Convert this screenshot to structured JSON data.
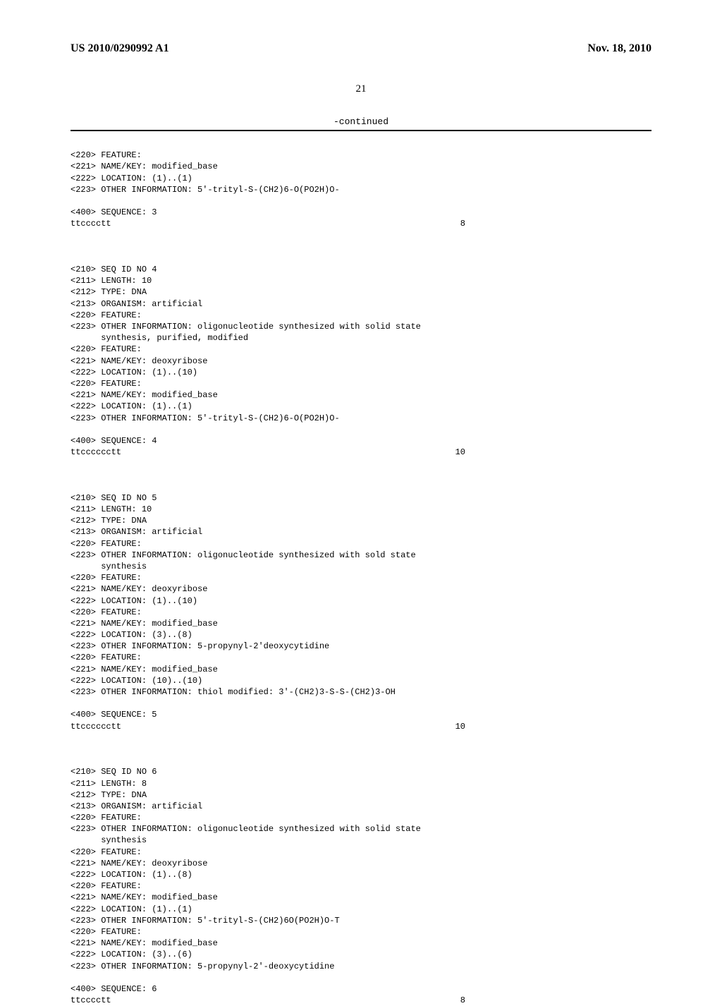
{
  "header": {
    "pub_number": "US 2010/0290992 A1",
    "pub_date": "Nov. 18, 2010"
  },
  "page_number": "21",
  "continued_label": "-continued",
  "blocks": {
    "b0": {
      "l1": "<220> FEATURE:",
      "l2": "<221> NAME/KEY: modified_base",
      "l3": "<222> LOCATION: (1)..(1)",
      "l4": "<223> OTHER INFORMATION: 5'-trityl-S-(CH2)6-O(PO2H)O-",
      "l5": "<400> SEQUENCE: 3",
      "seq": "ttcccctt",
      "seqnum": "8"
    },
    "b1": {
      "l1": "<210> SEQ ID NO 4",
      "l2": "<211> LENGTH: 10",
      "l3": "<212> TYPE: DNA",
      "l4": "<213> ORGANISM: artificial",
      "l5": "<220> FEATURE:",
      "l6": "<223> OTHER INFORMATION: oligonucleotide synthesized with solid state",
      "l7": "      synthesis, purified, modified",
      "l8": "<220> FEATURE:",
      "l9": "<221> NAME/KEY: deoxyribose",
      "l10": "<222> LOCATION: (1)..(10)",
      "l11": "<220> FEATURE:",
      "l12": "<221> NAME/KEY: modified_base",
      "l13": "<222> LOCATION: (1)..(1)",
      "l14": "<223> OTHER INFORMATION: 5'-trityl-S-(CH2)6-O(PO2H)O-",
      "l15": "<400> SEQUENCE: 4",
      "seq": "ttcccccctt",
      "seqnum": "10"
    },
    "b2": {
      "l1": "<210> SEQ ID NO 5",
      "l2": "<211> LENGTH: 10",
      "l3": "<212> TYPE: DNA",
      "l4": "<213> ORGANISM: artificial",
      "l5": "<220> FEATURE:",
      "l6": "<223> OTHER INFORMATION: oligonucleotide synthesized with sold state",
      "l7": "      synthesis",
      "l8": "<220> FEATURE:",
      "l9": "<221> NAME/KEY: deoxyribose",
      "l10": "<222> LOCATION: (1)..(10)",
      "l11": "<220> FEATURE:",
      "l12": "<221> NAME/KEY: modified_base",
      "l13": "<222> LOCATION: (3)..(8)",
      "l14": "<223> OTHER INFORMATION: 5-propynyl-2'deoxycytidine",
      "l15": "<220> FEATURE:",
      "l16": "<221> NAME/KEY: modified_base",
      "l17": "<222> LOCATION: (10)..(10)",
      "l18": "<223> OTHER INFORMATION: thiol modified: 3'-(CH2)3-S-S-(CH2)3-OH",
      "l19": "<400> SEQUENCE: 5",
      "seq": "ttcccccctt",
      "seqnum": "10"
    },
    "b3": {
      "l1": "<210> SEQ ID NO 6",
      "l2": "<211> LENGTH: 8",
      "l3": "<212> TYPE: DNA",
      "l4": "<213> ORGANISM: artificial",
      "l5": "<220> FEATURE:",
      "l6": "<223> OTHER INFORMATION: oligonucleotide synthesized with solid state",
      "l7": "      synthesis",
      "l8": "<220> FEATURE:",
      "l9": "<221> NAME/KEY: deoxyribose",
      "l10": "<222> LOCATION: (1)..(8)",
      "l11": "<220> FEATURE:",
      "l12": "<221> NAME/KEY: modified_base",
      "l13": "<222> LOCATION: (1)..(1)",
      "l14": "<223> OTHER INFORMATION: 5'-trityl-S-(CH2)6O(PO2H)O-T",
      "l15": "<220> FEATURE:",
      "l16": "<221> NAME/KEY: modified_base",
      "l17": "<222> LOCATION: (3)..(6)",
      "l18": "<223> OTHER INFORMATION: 5-propynyl-2'-deoxycytidine",
      "l19": "<400> SEQUENCE: 6",
      "seq": "ttcccctt",
      "seqnum": "8"
    }
  }
}
